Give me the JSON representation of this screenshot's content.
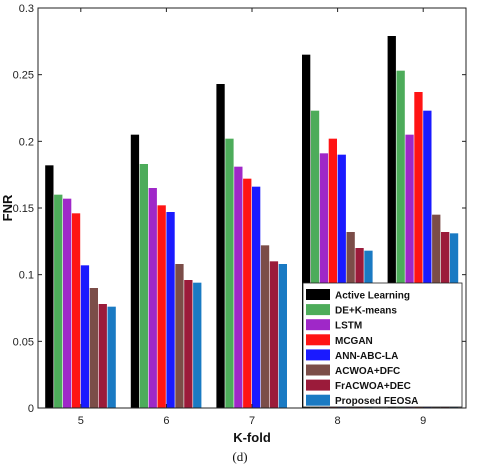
{
  "chart_data": {
    "type": "bar",
    "title": "",
    "xlabel": "K-fold",
    "ylabel": "FNR",
    "caption": "(d)",
    "categories": [
      "5",
      "6",
      "7",
      "8",
      "9"
    ],
    "ylim": [
      0,
      0.3
    ],
    "yticks": [
      "0",
      "0.05",
      "0.1",
      "0.15",
      "0.2",
      "0.25",
      "0.3"
    ],
    "grid": false,
    "legend_position": "bottom-right",
    "series": [
      {
        "name": "Active Learning",
        "color": "#000000",
        "values": [
          0.182,
          0.205,
          0.243,
          0.265,
          0.279
        ]
      },
      {
        "name": "DE+K-means",
        "color": "#4dac5a",
        "values": [
          0.16,
          0.183,
          0.202,
          0.223,
          0.253
        ]
      },
      {
        "name": "LSTM",
        "color": "#9f28c8",
        "values": [
          0.157,
          0.165,
          0.181,
          0.191,
          0.205
        ]
      },
      {
        "name": "MCGAN",
        "color": "#ff1414",
        "values": [
          0.146,
          0.152,
          0.172,
          0.202,
          0.237
        ]
      },
      {
        "name": "ANN-ABC-LA",
        "color": "#1a1aff",
        "values": [
          0.107,
          0.147,
          0.166,
          0.19,
          0.223
        ]
      },
      {
        "name": "ACWOA+DFC",
        "color": "#7b4d48",
        "values": [
          0.09,
          0.108,
          0.122,
          0.132,
          0.145
        ]
      },
      {
        "name": "FrACWOA+DEC",
        "color": "#9b1b3a",
        "values": [
          0.078,
          0.096,
          0.11,
          0.12,
          0.132
        ]
      },
      {
        "name": "Proposed FEOSA",
        "color": "#1a7ac3",
        "values": [
          0.076,
          0.094,
          0.108,
          0.118,
          0.131
        ]
      }
    ]
  }
}
